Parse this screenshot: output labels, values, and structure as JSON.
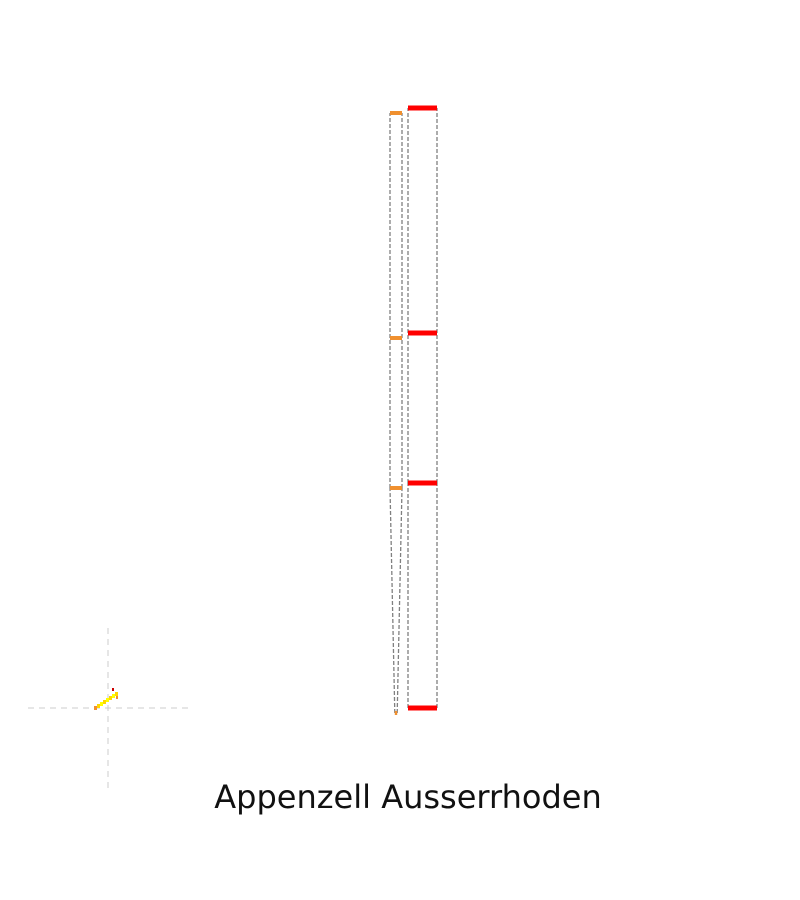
{
  "chart_data": {
    "type": "bar",
    "title": "Appenzell Ausserrhoden",
    "xlabel": "",
    "ylabel": "",
    "grid": false,
    "legend": "none",
    "ylim": [
      0,
      4
    ],
    "levels": [
      0,
      1,
      2,
      3.5
    ],
    "series": [
      {
        "color": "#f0902f",
        "values": [
          0,
          1.5,
          2.5,
          4
        ],
        "width_fraction": [
          0.2,
          1,
          1,
          1
        ]
      },
      {
        "color": "#ff0000",
        "values": [
          0,
          1.5,
          2.5,
          4
        ],
        "width_fraction": [
          1,
          1,
          1,
          1
        ]
      }
    ],
    "inset_glyph": {
      "colors": [
        "#f0902f",
        "#ffd700",
        "#ffff00",
        "#cc0000"
      ],
      "guide_color": "#cccccc"
    }
  }
}
